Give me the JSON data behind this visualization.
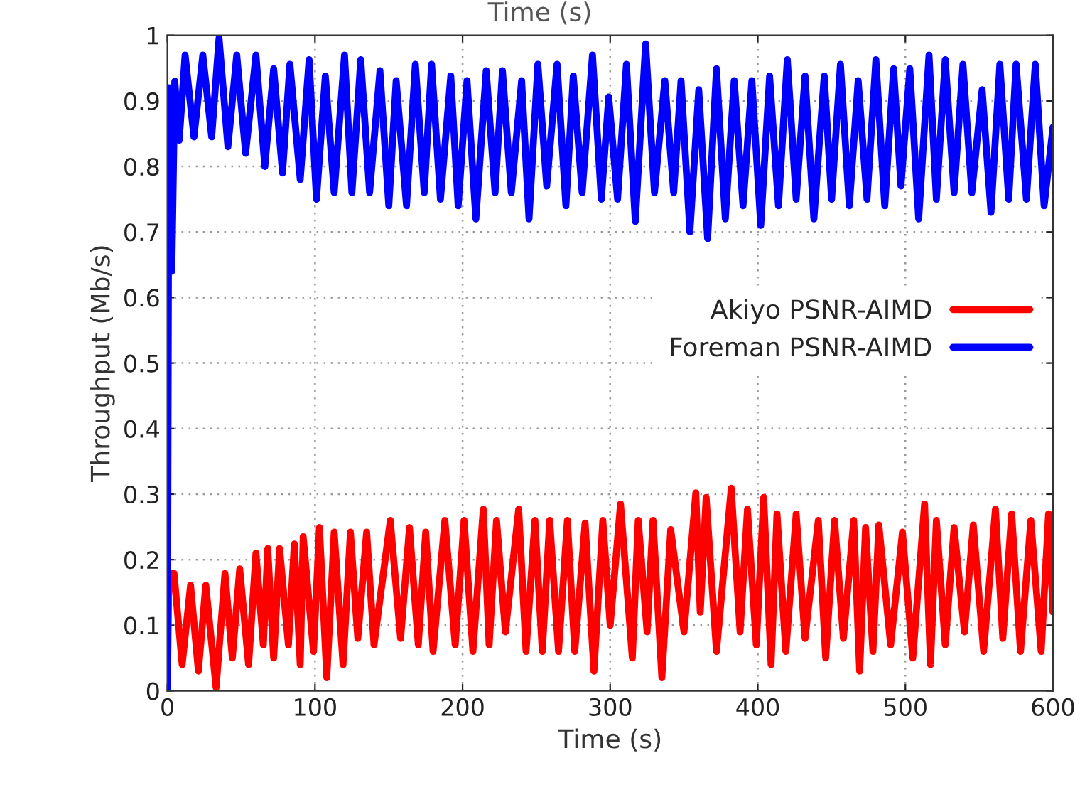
{
  "chart_data": {
    "type": "line",
    "title": "Time (s)",
    "xlabel": "Time (s)",
    "ylabel": "Throughput (Mb/s)",
    "xlim": [
      0,
      600
    ],
    "xticks": [
      0,
      100,
      200,
      300,
      400,
      500,
      600
    ],
    "ylim": [
      0,
      1
    ],
    "yticks": [
      0,
      0.1,
      0.2,
      0.3,
      0.4,
      0.5,
      0.6,
      0.7,
      0.8,
      0.9,
      1
    ],
    "grid": true,
    "legend": "right",
    "marker": "none",
    "line_style": "solid",
    "series": [
      {
        "name": "Akiyo PSNR-AIMD",
        "color": "#ff0000",
        "x": [
          0,
          1,
          4.5,
          10,
          15.7,
          21,
          26,
          33,
          39,
          44,
          49,
          55,
          60,
          65,
          68,
          72,
          76,
          82,
          86,
          90,
          92,
          99,
          103,
          108,
          113,
          119,
          124,
          129,
          135,
          140,
          151,
          158,
          164,
          170,
          175,
          180,
          188,
          195,
          201,
          207,
          214,
          218,
          223,
          229,
          238,
          243,
          249,
          254,
          259,
          265,
          271,
          276,
          283,
          289,
          295,
          300,
          307,
          315,
          319,
          325,
          329,
          335,
          341,
          350,
          358,
          361,
          365,
          372,
          382,
          388,
          393,
          399,
          404,
          409,
          413,
          419,
          426,
          432,
          441,
          446,
          452,
          458,
          465,
          469,
          473,
          478,
          482,
          490,
          498,
          505,
          513,
          517,
          521,
          527,
          533,
          540,
          546,
          553,
          561,
          566,
          572,
          578,
          585,
          592,
          597,
          600
        ],
        "values": [
          0.0,
          0.18,
          0.179,
          0.04,
          0.161,
          0.03,
          0.161,
          0.005,
          0.179,
          0.05,
          0.186,
          0.04,
          0.21,
          0.07,
          0.217,
          0.05,
          0.217,
          0.07,
          0.224,
          0.04,
          0.235,
          0.06,
          0.249,
          0.02,
          0.242,
          0.04,
          0.242,
          0.08,
          0.242,
          0.07,
          0.26,
          0.08,
          0.249,
          0.07,
          0.242,
          0.06,
          0.26,
          0.07,
          0.26,
          0.06,
          0.277,
          0.07,
          0.26,
          0.09,
          0.277,
          0.06,
          0.26,
          0.06,
          0.26,
          0.06,
          0.26,
          0.06,
          0.256,
          0.03,
          0.26,
          0.1,
          0.285,
          0.05,
          0.26,
          0.09,
          0.26,
          0.02,
          0.246,
          0.09,
          0.302,
          0.12,
          0.295,
          0.06,
          0.309,
          0.09,
          0.277,
          0.07,
          0.295,
          0.04,
          0.27,
          0.06,
          0.27,
          0.08,
          0.26,
          0.05,
          0.26,
          0.08,
          0.26,
          0.03,
          0.249,
          0.06,
          0.253,
          0.07,
          0.242,
          0.05,
          0.285,
          0.04,
          0.26,
          0.07,
          0.249,
          0.09,
          0.253,
          0.06,
          0.277,
          0.08,
          0.27,
          0.06,
          0.26,
          0.06,
          0.27,
          0.12
        ]
      },
      {
        "name": "Foreman PSNR-AIMD",
        "color": "#0000ff",
        "x": [
          0,
          1,
          3,
          5,
          8,
          12,
          18,
          24,
          30,
          35,
          41,
          47,
          53,
          60,
          66,
          72,
          78,
          83,
          90,
          96,
          101,
          107,
          113,
          120,
          125,
          131,
          137,
          144,
          150,
          155,
          162,
          168,
          174,
          179,
          185,
          192,
          197,
          203,
          209,
          216,
          222,
          227,
          233,
          240,
          245,
          251,
          257,
          264,
          270,
          275,
          281,
          288,
          294,
          299,
          305,
          311,
          317,
          324,
          330,
          337,
          343,
          348,
          354,
          360,
          366,
          372,
          378,
          384,
          390,
          396,
          402,
          408,
          414,
          420,
          426,
          432,
          438,
          445,
          450,
          456,
          462,
          468,
          474,
          480,
          486,
          492,
          497,
          503,
          509,
          516,
          521,
          527,
          533,
          539,
          545,
          552,
          558,
          564,
          570,
          575,
          582,
          588,
          594,
          600
        ],
        "values": [
          0.0,
          0.92,
          0.64,
          0.93,
          0.84,
          0.97,
          0.845,
          0.97,
          0.845,
          0.996,
          0.83,
          0.97,
          0.82,
          0.97,
          0.8,
          0.949,
          0.79,
          0.956,
          0.78,
          0.963,
          0.75,
          0.938,
          0.76,
          0.97,
          0.76,
          0.963,
          0.76,
          0.946,
          0.74,
          0.931,
          0.74,
          0.956,
          0.76,
          0.956,
          0.75,
          0.938,
          0.74,
          0.931,
          0.72,
          0.946,
          0.76,
          0.946,
          0.76,
          0.931,
          0.72,
          0.956,
          0.77,
          0.956,
          0.74,
          0.938,
          0.76,
          0.97,
          0.75,
          0.906,
          0.75,
          0.956,
          0.716,
          0.987,
          0.76,
          0.931,
          0.76,
          0.931,
          0.7,
          0.917,
          0.69,
          0.949,
          0.72,
          0.931,
          0.74,
          0.931,
          0.71,
          0.938,
          0.74,
          0.963,
          0.75,
          0.938,
          0.72,
          0.938,
          0.75,
          0.956,
          0.74,
          0.931,
          0.75,
          0.963,
          0.74,
          0.949,
          0.77,
          0.949,
          0.72,
          0.97,
          0.75,
          0.963,
          0.76,
          0.956,
          0.76,
          0.917,
          0.73,
          0.956,
          0.75,
          0.956,
          0.75,
          0.956,
          0.74,
          0.86
        ]
      }
    ]
  }
}
